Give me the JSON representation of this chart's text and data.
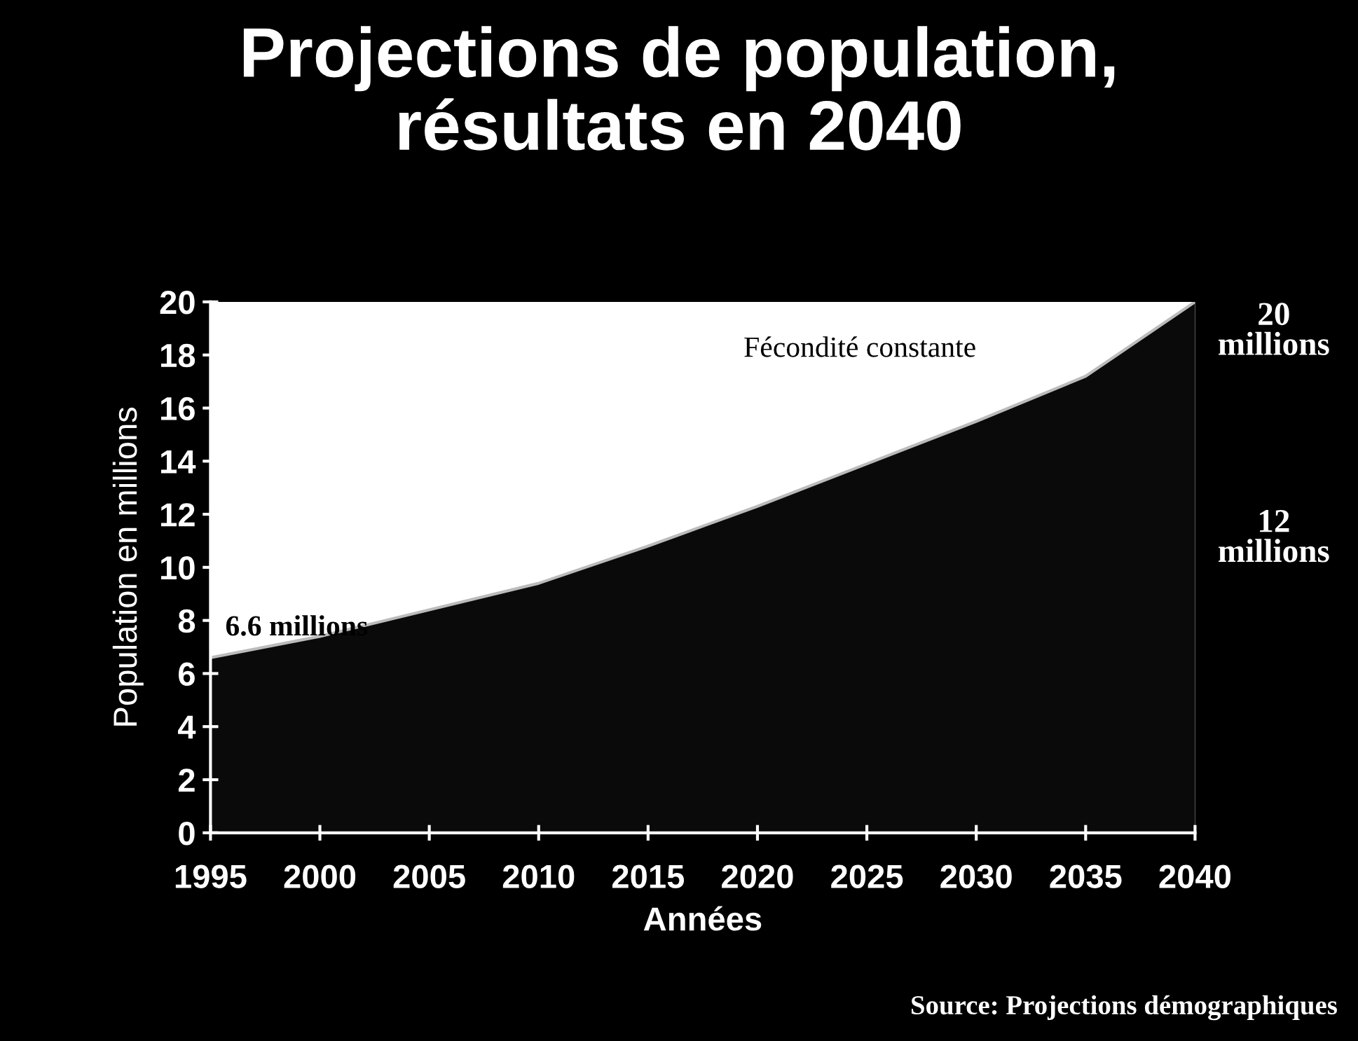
{
  "chart_data": {
    "type": "area",
    "title": "Projections de population,\nrésultats en 2040",
    "xlabel": "Années",
    "ylabel": "Population en millions",
    "x": [
      1995,
      2000,
      2005,
      2010,
      2015,
      2020,
      2025,
      2030,
      2035,
      2040
    ],
    "series": [
      {
        "name": "Fécondité constante",
        "color": "#0a0a0a",
        "values": [
          6.6,
          7.4,
          8.4,
          9.4,
          10.8,
          12.3,
          13.9,
          15.5,
          17.2,
          20
        ]
      }
    ],
    "xlim": [
      1995,
      2040
    ],
    "xticks": [
      1995,
      2000,
      2005,
      2010,
      2015,
      2020,
      2025,
      2030,
      2035,
      2040
    ],
    "ylim": [
      0,
      20
    ],
    "yticks": [
      0,
      2,
      4,
      6,
      8,
      10,
      12,
      14,
      16,
      18,
      20
    ],
    "grid": false,
    "legend": false,
    "annotations": [
      "6.6 millions",
      "20\nmillions",
      "12\nmillions",
      "Source: Projections démographiques"
    ]
  }
}
